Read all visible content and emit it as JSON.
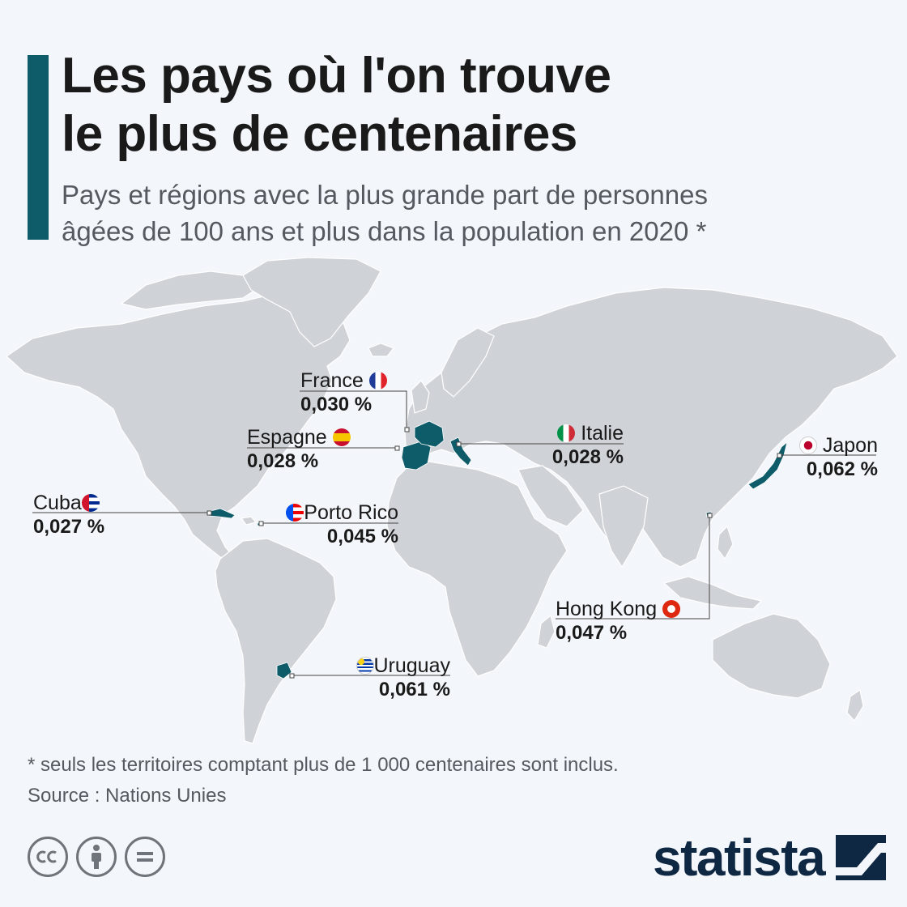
{
  "header": {
    "title_line1": "Les pays où l'on trouve",
    "title_line2": "le plus de centenaires",
    "subtitle_line1": "Pays et régions avec la plus grande part de personnes",
    "subtitle_line2": "âgées de 100 ans et plus dans la population en 2020 *"
  },
  "colors": {
    "accent": "#0e5c6a",
    "land": "#cfd3d8",
    "brand": "#0e2742"
  },
  "countries": [
    {
      "key": "france",
      "name": "France",
      "value": "0,030 %",
      "flag": "flag-france-icon"
    },
    {
      "key": "espagne",
      "name": "Espagne",
      "value": "0,028 %",
      "flag": "flag-spain-icon"
    },
    {
      "key": "italie",
      "name": "Italie",
      "value": "0,028 %",
      "flag": "flag-italy-icon"
    },
    {
      "key": "japon",
      "name": "Japon",
      "value": "0,062 %",
      "flag": "flag-japan-icon"
    },
    {
      "key": "cuba",
      "name": "Cuba",
      "value": "0,027 %",
      "flag": "flag-cuba-icon"
    },
    {
      "key": "porto_rico",
      "name": "Porto Rico",
      "value": "0,045 %",
      "flag": "flag-puerto-rico-icon"
    },
    {
      "key": "hong_kong",
      "name": "Hong Kong",
      "value": "0,047 %",
      "flag": "flag-hong-kong-icon"
    },
    {
      "key": "uruguay",
      "name": "Uruguay",
      "value": "0,061 %",
      "flag": "flag-uruguay-icon"
    }
  ],
  "footer": {
    "footnote": "* seuls les territoires comptant plus de 1 000 centenaires sont inclus.",
    "source": "Source : Nations Unies",
    "brand": "statista",
    "license_icons": [
      "cc-icon",
      "attribution-icon",
      "no-derivatives-icon"
    ]
  }
}
